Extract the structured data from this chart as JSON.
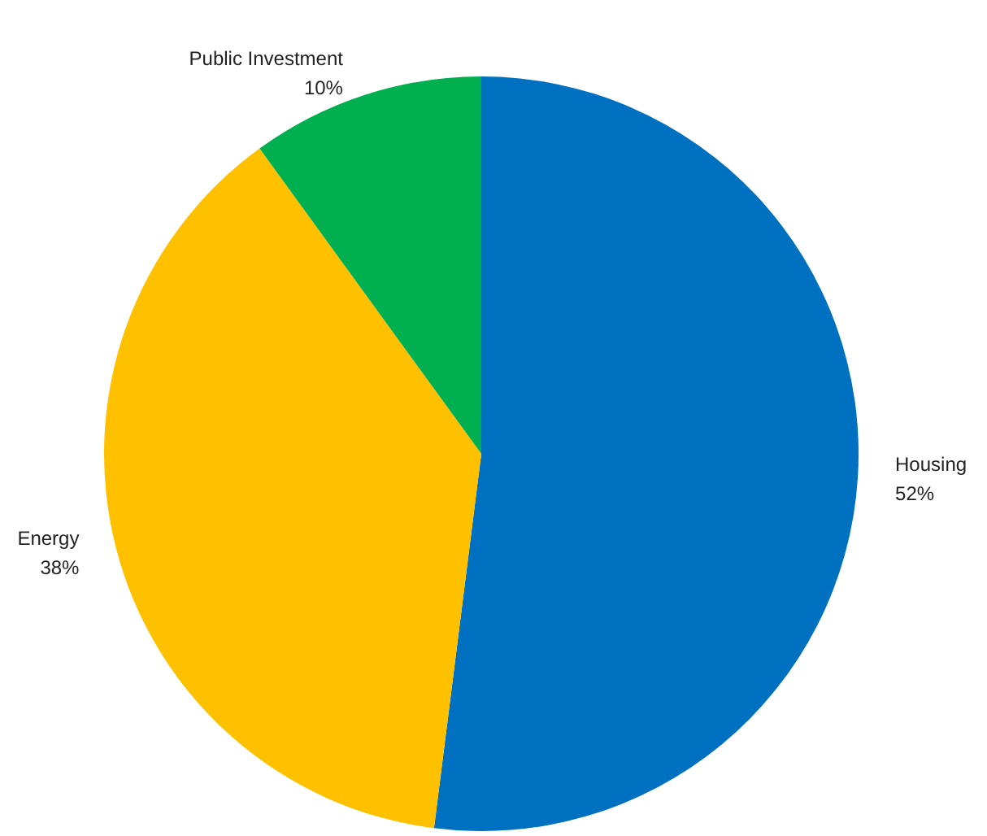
{
  "chart_data": {
    "type": "pie",
    "categories": [
      "Housing",
      "Energy",
      "Public Investment"
    ],
    "values": [
      52,
      38,
      10
    ],
    "colors": [
      "#0070c0",
      "#ffc000",
      "#00b050"
    ],
    "value_labels": [
      "52%",
      "38%",
      "10%"
    ],
    "legend": false
  }
}
